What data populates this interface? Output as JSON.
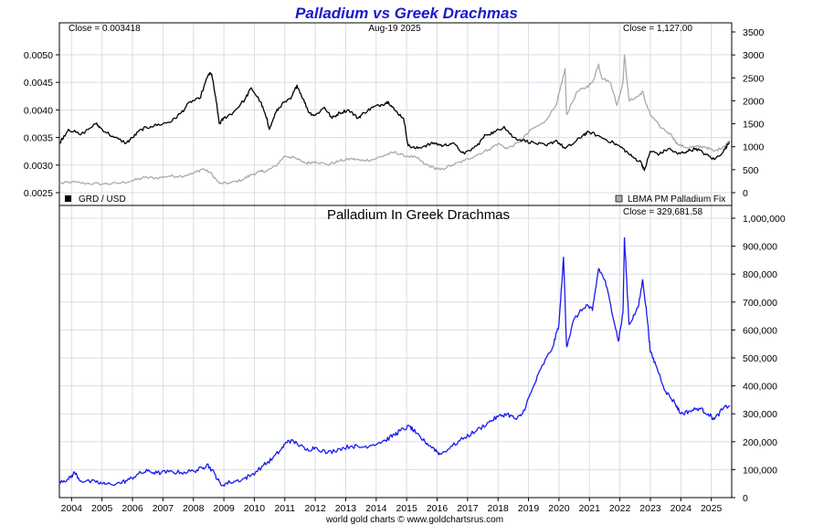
{
  "title": "Palladium vs Greek Drachmas",
  "title_color": "#1a1acc",
  "top_panel": {
    "close_left": "Close = 0.003418",
    "date": "Aug-19  2025",
    "close_right": "Close = 1,127.00",
    "legend_left": "GRD / USD",
    "legend_right": "LBMA PM Palladium Fix",
    "left_ticks": [
      "0.0050",
      "0.0045",
      "0.0040",
      "0.0035",
      "0.0030",
      "0.0025"
    ],
    "right_ticks": [
      "3500",
      "3000",
      "2500",
      "2000",
      "1500",
      "1000",
      "500",
      "0"
    ]
  },
  "bottom_panel": {
    "subtitle": "Palladium In Greek Drachmas",
    "close": "Close = 329,681.58",
    "right_ticks": [
      "1,000,000",
      "900,000",
      "800,000",
      "700,000",
      "600,000",
      "500,000",
      "400,000",
      "300,000",
      "200,000",
      "100,000",
      "0"
    ]
  },
  "x_ticks": [
    "2004",
    "2005",
    "2006",
    "2007",
    "2008",
    "2009",
    "2010",
    "2011",
    "2012",
    "2013",
    "2014",
    "2015",
    "2016",
    "2017",
    "2018",
    "2019",
    "2020",
    "2021",
    "2022",
    "2023",
    "2024",
    "2025"
  ],
  "footer": "world gold charts © www.goldchartsrus.com",
  "colors": {
    "grd_usd": "#000000",
    "palladium_usd": "#aaaaaa",
    "palladium_grd": "#1a1aee",
    "grid": "#d8dde6"
  },
  "chart_data": [
    {
      "type": "line",
      "title": "Palladium vs Greek Drachmas",
      "ylim_left": [
        0.0025,
        0.005
      ],
      "ylim_right": [
        0,
        3500
      ],
      "series": [
        {
          "name": "GRD / USD",
          "axis": "left",
          "points": [
            [
              2003.6,
              0.0034
            ],
            [
              2003.9,
              0.00365
            ],
            [
              2004.3,
              0.00355
            ],
            [
              2004.8,
              0.00375
            ],
            [
              2005.0,
              0.00365
            ],
            [
              2005.4,
              0.0035
            ],
            [
              2005.8,
              0.0034
            ],
            [
              2006.0,
              0.0035
            ],
            [
              2006.3,
              0.00365
            ],
            [
              2006.6,
              0.0037
            ],
            [
              2007.0,
              0.00375
            ],
            [
              2007.3,
              0.0038
            ],
            [
              2007.6,
              0.00395
            ],
            [
              2007.9,
              0.00415
            ],
            [
              2008.2,
              0.0042
            ],
            [
              2008.5,
              0.00465
            ],
            [
              2008.6,
              0.00465
            ],
            [
              2008.75,
              0.00415
            ],
            [
              2008.85,
              0.00375
            ],
            [
              2009.0,
              0.00385
            ],
            [
              2009.3,
              0.00395
            ],
            [
              2009.7,
              0.0042
            ],
            [
              2009.9,
              0.0044
            ],
            [
              2010.2,
              0.00415
            ],
            [
              2010.4,
              0.00385
            ],
            [
              2010.5,
              0.00365
            ],
            [
              2010.7,
              0.00395
            ],
            [
              2010.9,
              0.0041
            ],
            [
              2011.2,
              0.0042
            ],
            [
              2011.4,
              0.00445
            ],
            [
              2011.6,
              0.0042
            ],
            [
              2011.8,
              0.00395
            ],
            [
              2012.0,
              0.0039
            ],
            [
              2012.3,
              0.00405
            ],
            [
              2012.55,
              0.00385
            ],
            [
              2012.8,
              0.00395
            ],
            [
              2013.1,
              0.004
            ],
            [
              2013.4,
              0.00385
            ],
            [
              2013.6,
              0.00395
            ],
            [
              2013.9,
              0.00405
            ],
            [
              2014.2,
              0.0041
            ],
            [
              2014.4,
              0.00415
            ],
            [
              2014.6,
              0.004
            ],
            [
              2014.9,
              0.00385
            ],
            [
              2015.05,
              0.00335
            ],
            [
              2015.3,
              0.0033
            ],
            [
              2015.6,
              0.00335
            ],
            [
              2015.9,
              0.0034
            ],
            [
              2016.2,
              0.00335
            ],
            [
              2016.5,
              0.0034
            ],
            [
              2016.9,
              0.0032
            ],
            [
              2017.3,
              0.00335
            ],
            [
              2017.6,
              0.00355
            ],
            [
              2017.9,
              0.0036
            ],
            [
              2018.2,
              0.0037
            ],
            [
              2018.5,
              0.0035
            ],
            [
              2018.8,
              0.00345
            ],
            [
              2019.2,
              0.0034
            ],
            [
              2019.6,
              0.00335
            ],
            [
              2019.9,
              0.00345
            ],
            [
              2020.2,
              0.0033
            ],
            [
              2020.5,
              0.0034
            ],
            [
              2020.8,
              0.00355
            ],
            [
              2021.0,
              0.0036
            ],
            [
              2021.4,
              0.0035
            ],
            [
              2021.8,
              0.0034
            ],
            [
              2022.1,
              0.0033
            ],
            [
              2022.4,
              0.00315
            ],
            [
              2022.7,
              0.00305
            ],
            [
              2022.8,
              0.0029
            ],
            [
              2023.0,
              0.00325
            ],
            [
              2023.3,
              0.0032
            ],
            [
              2023.6,
              0.0033
            ],
            [
              2023.9,
              0.0032
            ],
            [
              2024.2,
              0.00325
            ],
            [
              2024.5,
              0.0033
            ],
            [
              2024.8,
              0.0032
            ],
            [
              2025.1,
              0.0031
            ],
            [
              2025.4,
              0.00325
            ],
            [
              2025.6,
              0.00342
            ]
          ]
        },
        {
          "name": "LBMA PM Palladium Fix",
          "axis": "right",
          "points": [
            [
              2003.6,
              200
            ],
            [
              2004.0,
              230
            ],
            [
              2004.5,
              200
            ],
            [
              2005.0,
              190
            ],
            [
              2005.5,
              200
            ],
            [
              2006.0,
              260
            ],
            [
              2006.4,
              330
            ],
            [
              2006.8,
              320
            ],
            [
              2007.2,
              360
            ],
            [
              2007.6,
              360
            ],
            [
              2008.0,
              420
            ],
            [
              2008.3,
              520
            ],
            [
              2008.55,
              440
            ],
            [
              2008.85,
              200
            ],
            [
              2009.2,
              210
            ],
            [
              2009.6,
              280
            ],
            [
              2009.9,
              390
            ],
            [
              2010.2,
              460
            ],
            [
              2010.4,
              470
            ],
            [
              2010.7,
              580
            ],
            [
              2011.0,
              800
            ],
            [
              2011.3,
              760
            ],
            [
              2011.7,
              640
            ],
            [
              2012.0,
              680
            ],
            [
              2012.4,
              610
            ],
            [
              2012.8,
              690
            ],
            [
              2013.2,
              740
            ],
            [
              2013.5,
              700
            ],
            [
              2013.9,
              720
            ],
            [
              2014.3,
              820
            ],
            [
              2014.6,
              880
            ],
            [
              2014.9,
              810
            ],
            [
              2015.3,
              770
            ],
            [
              2015.6,
              620
            ],
            [
              2015.9,
              540
            ],
            [
              2016.1,
              500
            ],
            [
              2016.5,
              600
            ],
            [
              2016.9,
              700
            ],
            [
              2017.3,
              820
            ],
            [
              2017.7,
              940
            ],
            [
              2018.0,
              1070
            ],
            [
              2018.3,
              960
            ],
            [
              2018.7,
              1100
            ],
            [
              2019.1,
              1380
            ],
            [
              2019.5,
              1520
            ],
            [
              2019.9,
              1900
            ],
            [
              2020.1,
              2400
            ],
            [
              2020.2,
              2700
            ],
            [
              2020.25,
              1700
            ],
            [
              2020.6,
              2200
            ],
            [
              2020.9,
              2300
            ],
            [
              2021.1,
              2400
            ],
            [
              2021.3,
              2800
            ],
            [
              2021.4,
              2500
            ],
            [
              2021.7,
              2400
            ],
            [
              2021.9,
              1900
            ],
            [
              2022.1,
              2400
            ],
            [
              2022.15,
              3000
            ],
            [
              2022.3,
              2000
            ],
            [
              2022.6,
              2100
            ],
            [
              2022.75,
              2200
            ],
            [
              2022.85,
              1950
            ],
            [
              2023.0,
              1700
            ],
            [
              2023.3,
              1450
            ],
            [
              2023.7,
              1250
            ],
            [
              2023.9,
              1050
            ],
            [
              2024.2,
              980
            ],
            [
              2024.5,
              1000
            ],
            [
              2024.8,
              1000
            ],
            [
              2025.1,
              900
            ],
            [
              2025.4,
              1000
            ],
            [
              2025.6,
              1130
            ]
          ]
        }
      ]
    },
    {
      "type": "line",
      "title": "Palladium In Greek Drachmas",
      "ylim": [
        0,
        1000000
      ],
      "series": [
        {
          "name": "Palladium In Greek Drachmas",
          "points": [
            [
              2003.6,
              60000
            ],
            [
              2003.9,
              65000
            ],
            [
              2004.1,
              90000
            ],
            [
              2004.3,
              60000
            ],
            [
              2004.8,
              55000
            ],
            [
              2005.1,
              48000
            ],
            [
              2005.6,
              52000
            ],
            [
              2005.9,
              65000
            ],
            [
              2006.2,
              85000
            ],
            [
              2006.5,
              95000
            ],
            [
              2006.8,
              88000
            ],
            [
              2007.2,
              92000
            ],
            [
              2007.6,
              90000
            ],
            [
              2008.0,
              95000
            ],
            [
              2008.3,
              105000
            ],
            [
              2008.45,
              120000
            ],
            [
              2008.7,
              85000
            ],
            [
              2008.9,
              45000
            ],
            [
              2009.2,
              55000
            ],
            [
              2009.6,
              65000
            ],
            [
              2009.9,
              80000
            ],
            [
              2010.3,
              115000
            ],
            [
              2010.6,
              140000
            ],
            [
              2010.9,
              175000
            ],
            [
              2011.1,
              205000
            ],
            [
              2011.4,
              195000
            ],
            [
              2011.7,
              170000
            ],
            [
              2012.0,
              180000
            ],
            [
              2012.4,
              160000
            ],
            [
              2012.8,
              175000
            ],
            [
              2013.2,
              185000
            ],
            [
              2013.5,
              180000
            ],
            [
              2013.9,
              190000
            ],
            [
              2014.3,
              205000
            ],
            [
              2014.6,
              225000
            ],
            [
              2014.8,
              240000
            ],
            [
              2015.1,
              255000
            ],
            [
              2015.3,
              230000
            ],
            [
              2015.6,
              200000
            ],
            [
              2015.9,
              175000
            ],
            [
              2016.1,
              155000
            ],
            [
              2016.5,
              185000
            ],
            [
              2016.9,
              215000
            ],
            [
              2017.3,
              240000
            ],
            [
              2017.7,
              270000
            ],
            [
              2018.0,
              290000
            ],
            [
              2018.3,
              300000
            ],
            [
              2018.6,
              280000
            ],
            [
              2018.8,
              300000
            ],
            [
              2019.1,
              380000
            ],
            [
              2019.4,
              460000
            ],
            [
              2019.8,
              540000
            ],
            [
              2020.0,
              620000
            ],
            [
              2020.15,
              860000
            ],
            [
              2020.25,
              540000
            ],
            [
              2020.5,
              640000
            ],
            [
              2020.9,
              690000
            ],
            [
              2021.1,
              670000
            ],
            [
              2021.3,
              820000
            ],
            [
              2021.5,
              780000
            ],
            [
              2021.7,
              690000
            ],
            [
              2021.95,
              560000
            ],
            [
              2022.1,
              660000
            ],
            [
              2022.15,
              930000
            ],
            [
              2022.3,
              620000
            ],
            [
              2022.6,
              680000
            ],
            [
              2022.75,
              780000
            ],
            [
              2022.9,
              640000
            ],
            [
              2023.0,
              520000
            ],
            [
              2023.2,
              470000
            ],
            [
              2023.5,
              380000
            ],
            [
              2023.8,
              340000
            ],
            [
              2024.0,
              300000
            ],
            [
              2024.3,
              310000
            ],
            [
              2024.6,
              320000
            ],
            [
              2024.9,
              300000
            ],
            [
              2025.1,
              280000
            ],
            [
              2025.4,
              320000
            ],
            [
              2025.6,
              330000
            ]
          ]
        }
      ]
    }
  ]
}
